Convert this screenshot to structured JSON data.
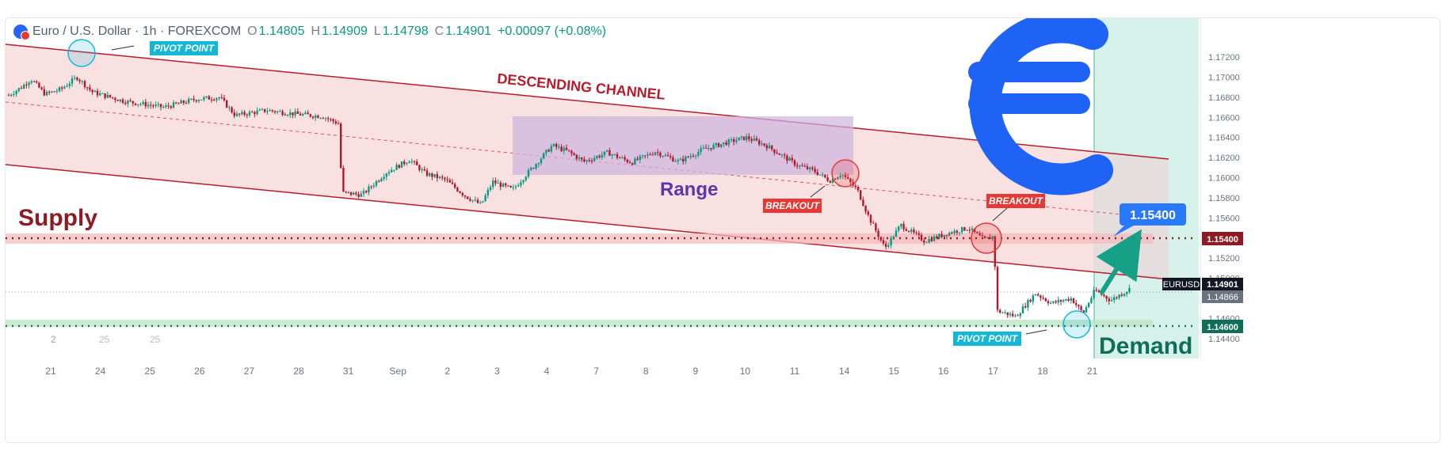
{
  "header": {
    "symbol": "Euro / U.S. Dollar · 1h · FOREXCOM",
    "o_label": "O",
    "o": "1.14805",
    "h_label": "H",
    "h": "1.14909",
    "l_label": "L",
    "l": "1.14798",
    "c_label": "C",
    "c": "1.14901",
    "change": "+0.00097 (+0.08%)"
  },
  "colors": {
    "up": "#089981",
    "down": "#b2182b",
    "channel_fill": "#f8dcdc",
    "channel_line": "#b71c2c",
    "range_fill": "#cdb4e0",
    "supply_band": "#f4b9b9",
    "demand_band": "#bfe3c4",
    "demand_zone": "#d6f0ea",
    "cyan": "#14b8d6",
    "blue": "#2979ff",
    "euro": "#1e63f5",
    "arrow": "#16a085"
  },
  "chart_data": {
    "type": "candlestick",
    "symbol": "EURUSD",
    "timeframe": "1h",
    "x_tick_labels": [
      "21",
      "24",
      "25",
      "26",
      "27",
      "28",
      "31",
      "Sep",
      "2",
      "3",
      "4",
      "7",
      "8",
      "9",
      "10",
      "11",
      "14",
      "15",
      "16",
      "17",
      "18",
      "21"
    ],
    "y_tick_labels": [
      "1.17200",
      "1.17000",
      "1.16800",
      "1.16600",
      "1.16400",
      "1.16200",
      "1.16000",
      "1.15800",
      "1.15600",
      "1.15400",
      "1.15200",
      "1.15000",
      "1.14800",
      "1.14600",
      "1.14400"
    ],
    "ylim": [
      1.1432,
      1.1735
    ],
    "price_path": [
      [
        0,
        1.168
      ],
      [
        20,
        1.169
      ],
      [
        32,
        1.1698
      ],
      [
        50,
        1.1683
      ],
      [
        70,
        1.1688
      ],
      [
        90,
        1.17
      ],
      [
        110,
        1.1685
      ],
      [
        150,
        1.1676
      ],
      [
        200,
        1.167
      ],
      [
        240,
        1.1678
      ],
      [
        270,
        1.168
      ],
      [
        290,
        1.1662
      ],
      [
        330,
        1.1667
      ],
      [
        370,
        1.1663
      ],
      [
        400,
        1.1661
      ],
      [
        420,
        1.1654
      ],
      [
        425,
        1.1585
      ],
      [
        450,
        1.1583
      ],
      [
        480,
        1.1605
      ],
      [
        510,
        1.1618
      ],
      [
        530,
        1.1604
      ],
      [
        555,
        1.1598
      ],
      [
        580,
        1.1582
      ],
      [
        600,
        1.1573
      ],
      [
        615,
        1.1596
      ],
      [
        640,
        1.1588
      ],
      [
        665,
        1.161
      ],
      [
        690,
        1.1632
      ],
      [
        710,
        1.1626
      ],
      [
        730,
        1.1616
      ],
      [
        760,
        1.1625
      ],
      [
        790,
        1.1615
      ],
      [
        820,
        1.1626
      ],
      [
        850,
        1.1616
      ],
      [
        880,
        1.1628
      ],
      [
        910,
        1.1635
      ],
      [
        935,
        1.164
      ],
      [
        960,
        1.1632
      ],
      [
        980,
        1.1622
      ],
      [
        1000,
        1.1612
      ],
      [
        1020,
        1.1607
      ],
      [
        1040,
        1.1597
      ],
      [
        1055,
        1.1604
      ],
      [
        1075,
        1.1588
      ],
      [
        1090,
        1.156
      ],
      [
        1110,
        1.153
      ],
      [
        1130,
        1.1553
      ],
      [
        1160,
        1.1537
      ],
      [
        1190,
        1.1545
      ],
      [
        1215,
        1.155
      ],
      [
        1235,
        1.1538
      ],
      [
        1248,
        1.1542
      ],
      [
        1250,
        1.1468
      ],
      [
        1275,
        1.1462
      ],
      [
        1300,
        1.1485
      ],
      [
        1320,
        1.1475
      ],
      [
        1345,
        1.148
      ],
      [
        1360,
        1.1465
      ],
      [
        1375,
        1.1488
      ],
      [
        1395,
        1.1478
      ],
      [
        1420,
        1.149
      ]
    ],
    "annotations": {
      "channel_title": "DESCENDING CHANNEL",
      "range_label": "Range",
      "supply_label": "Supply",
      "demand_label": "Demand",
      "pivot_top": "PIVOT POINT",
      "pivot_bottom": "PIVOT POINT",
      "breakout_1": "BREAKOUT",
      "breakout_2": "BREAKOUT",
      "target_label": "1.15400"
    },
    "price_tags": {
      "supply": "1.15400",
      "symbol": "EURUSD",
      "current": "1.14901",
      "secondary": "1.14866",
      "demand": "1.14600"
    },
    "faded_labels": [
      "2",
      "25",
      "25"
    ]
  }
}
